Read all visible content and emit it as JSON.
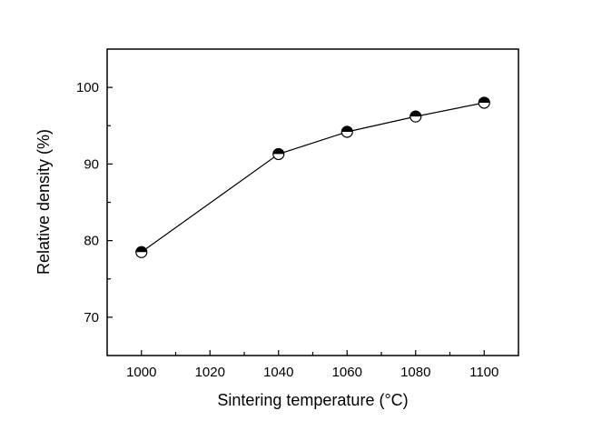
{
  "chart_data": {
    "type": "line",
    "title": "",
    "xlabel": "Sintering temperature (°C)",
    "ylabel": "Relative density (%)",
    "xlim": [
      990,
      1110
    ],
    "ylim": [
      65,
      105
    ],
    "xticks": [
      1000,
      1020,
      1040,
      1060,
      1080,
      1100
    ],
    "xminor": [
      1010,
      1030,
      1050,
      1070,
      1090
    ],
    "yticks": [
      70,
      80,
      90,
      100
    ],
    "yminor": [
      75,
      85,
      95
    ],
    "grid": false,
    "legend": "none",
    "marker": "half-filled-circle",
    "series": [
      {
        "name": "Relative density",
        "x": [
          1000,
          1040,
          1060,
          1080,
          1100
        ],
        "y": [
          78.5,
          91.3,
          94.2,
          96.2,
          98.0
        ]
      }
    ]
  }
}
